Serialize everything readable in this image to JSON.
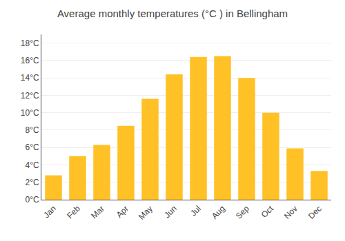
{
  "chart_data": {
    "type": "bar",
    "title": "Average monthly temperatures (°C ) in Bellingham",
    "categories": [
      "Jan",
      "Feb",
      "Mar",
      "Apr",
      "May",
      "Jun",
      "Jul",
      "Aug",
      "Sep",
      "Oct",
      "Nov",
      "Dec"
    ],
    "values": [
      2.8,
      5.0,
      6.3,
      8.5,
      11.6,
      14.4,
      16.4,
      16.5,
      14.0,
      10.0,
      5.9,
      3.3
    ],
    "color": "#FFC125",
    "ylim": [
      0,
      19
    ],
    "yticks": [
      {
        "value": 0,
        "label": "0°C"
      },
      {
        "value": 2,
        "label": "2°C"
      },
      {
        "value": 4,
        "label": "4°C"
      },
      {
        "value": 6,
        "label": "6°C"
      },
      {
        "value": 8,
        "label": "8°C"
      },
      {
        "value": 10,
        "label": "10°C"
      },
      {
        "value": 12,
        "label": "12°C"
      },
      {
        "value": 14,
        "label": "14°C"
      },
      {
        "value": 16,
        "label": "16°C"
      },
      {
        "value": 18,
        "label": "18°C"
      }
    ],
    "grid": true
  }
}
